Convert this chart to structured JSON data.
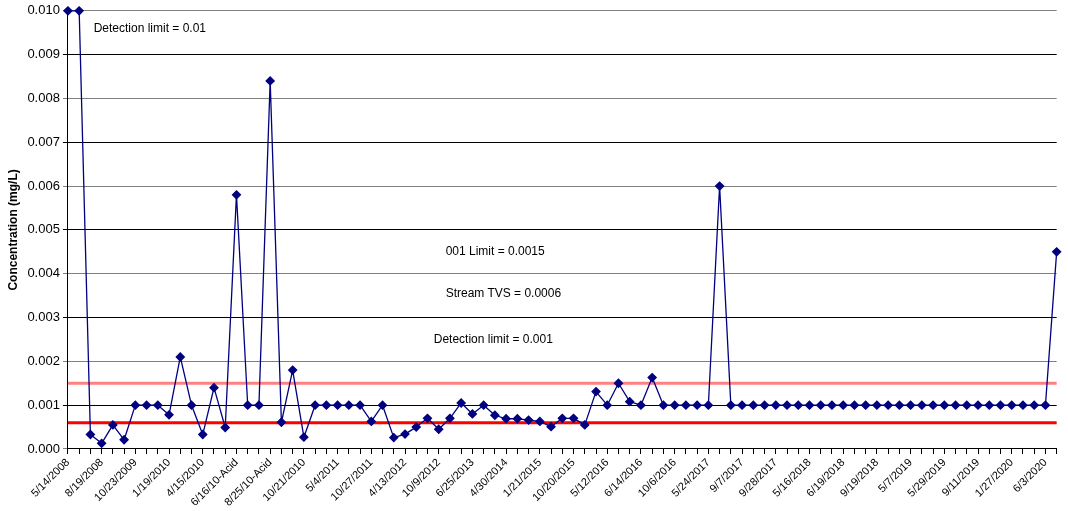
{
  "chart_data": {
    "type": "line",
    "ylabel": "Concentration (mg/L)",
    "categories": [
      "5/14/2008",
      null,
      null,
      "8/19/2008",
      null,
      null,
      "10/23/2009",
      null,
      null,
      "1/19/2010",
      null,
      null,
      "4/15/2010",
      null,
      null,
      "6/16/10-Acid",
      null,
      null,
      "8/25/10-Acid",
      null,
      null,
      "10/21/2010",
      null,
      null,
      "5/4/2011",
      null,
      null,
      "10/27/2011",
      null,
      null,
      "4/13/2012",
      null,
      null,
      "10/9/2012",
      null,
      null,
      "6/25/2013",
      null,
      null,
      "4/30/2014",
      null,
      null,
      "1/21/2015",
      null,
      null,
      "10/20/2015",
      null,
      null,
      "5/12/2016",
      null,
      null,
      "6/14/2016",
      null,
      null,
      "10/6/2016",
      null,
      null,
      "5/24/2017",
      null,
      null,
      "9/7/2017",
      null,
      null,
      "9/28/2017",
      null,
      null,
      "5/16/2018",
      null,
      null,
      "6/19/2018",
      null,
      null,
      "9/19/2018",
      null,
      null,
      "5/7/2019",
      null,
      null,
      "5/29/2019",
      null,
      null,
      "9/11/2019",
      null,
      null,
      "1/27/2020",
      null,
      null,
      "6/3/2020",
      null
    ],
    "series": [
      {
        "color": "#000080",
        "values": [
          0.01,
          0.01,
          0.00033,
          0.00013,
          0.00055,
          0.00021,
          0.001,
          0.001,
          0.001,
          0.00078,
          0.0021,
          0.001,
          0.00033,
          0.0014,
          0.00049,
          0.0058,
          0.001,
          0.001,
          0.0084,
          0.00061,
          0.0018,
          0.00027,
          0.001,
          0.001,
          0.001,
          0.001,
          0.001,
          0.00063,
          0.001,
          0.00026,
          0.00034,
          0.0005,
          0.0007,
          0.00045,
          0.0007,
          0.00105,
          0.0008,
          0.001,
          0.00077,
          0.00069,
          0.00069,
          0.00066,
          0.00063,
          0.00051,
          0.0007,
          0.0007,
          0.00055,
          0.00131,
          0.001,
          0.0015,
          0.00108,
          0.001,
          0.00163,
          0.001,
          0.001,
          0.001,
          0.001,
          0.001,
          0.006,
          0.001,
          0.001,
          0.001,
          0.001,
          0.001,
          0.001,
          0.001,
          0.001,
          0.001,
          0.001,
          0.001,
          0.001,
          0.001,
          0.001,
          0.001,
          0.001,
          0.001,
          0.001,
          0.001,
          0.001,
          0.001,
          0.001,
          0.001,
          0.001,
          0.001,
          0.001,
          0.001,
          0.001,
          0.001,
          0.0045
        ]
      }
    ],
    "ylim": [
      0,
      0.01
    ],
    "yticks": [
      {
        "value": 0,
        "label": "0.000"
      },
      {
        "value": 0.001,
        "label": "0.001"
      },
      {
        "value": 0.002,
        "label": "0.002"
      },
      {
        "value": 0.003,
        "label": "0.003"
      },
      {
        "value": 0.004,
        "label": "0.004"
      },
      {
        "value": 0.005,
        "label": "0.005"
      },
      {
        "value": 0.006,
        "label": "0.006"
      },
      {
        "value": 0.007,
        "label": "0.007"
      },
      {
        "value": 0.008,
        "label": "0.008"
      },
      {
        "value": 0.009,
        "label": "0.009"
      },
      {
        "value": 0.01,
        "label": "0.010"
      }
    ],
    "ref_lines": [
      {
        "axis": "y",
        "value": 0.0015,
        "color": "#ff8080"
      },
      {
        "axis": "y",
        "value": 0.0006,
        "color": "#ff0000"
      }
    ],
    "annotations": [
      "Detection limit = 0.01",
      "001 Limit = 0.0015",
      "Stream TVS = 0.0006",
      "Detection limit = 0.001"
    ],
    "grid": "y",
    "legend": false,
    "marker": "diamond",
    "line_style": "solid"
  }
}
